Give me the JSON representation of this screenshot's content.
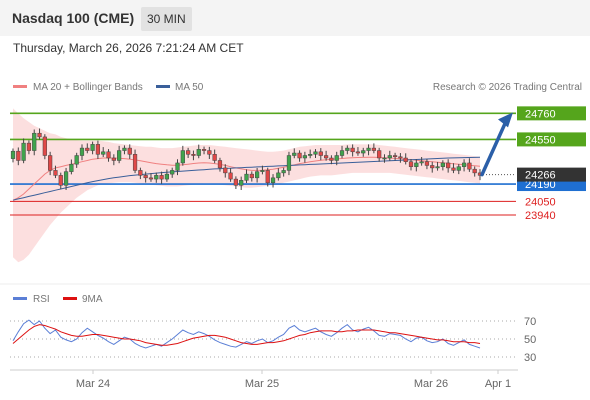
{
  "header": {
    "title": "Nasdaq 100 (CME)",
    "timeframe": "30 MIN",
    "datetime": "Thursday, March 26, 2026 7:21:24 AM CET"
  },
  "legend": {
    "ma20_label": "MA 20 + Bollinger Bands",
    "ma50_label": "MA 50",
    "copyright": "Research © 2026 Trading Central",
    "ma20_color": "#f08080",
    "ma50_color": "#3a5f9a"
  },
  "rsi_legend": {
    "rsi_label": "RSI",
    "ma_label": "9MA",
    "rsi_color": "#5b7fd6",
    "ma_color": "#dd1111"
  },
  "chart_data": [
    {
      "type": "candlestick",
      "title": "Nasdaq 100 (CME)",
      "x_ticks": [
        "Mar 24",
        "Mar 25",
        "Mar 26",
        "Apr 1"
      ],
      "ylim": [
        23400,
        24900
      ],
      "last_price": 24266,
      "levels": [
        {
          "value": 24760,
          "label": "24760",
          "kind": "resistance",
          "color": "#55a51c"
        },
        {
          "value": 24550,
          "label": "24550",
          "kind": "resistance",
          "color": "#55a51c"
        },
        {
          "value": 24190,
          "label": "24190",
          "kind": "pivot",
          "color": "#1f6fd1"
        },
        {
          "value": 24050,
          "label": "24050",
          "kind": "support",
          "color": "#dd1f1f"
        },
        {
          "value": 23940,
          "label": "23940",
          "kind": "support",
          "color": "#dd1f1f"
        }
      ],
      "last_price_label": "24266",
      "arrow": {
        "from": 24266,
        "to": 24760,
        "color": "#2b5fa8"
      },
      "closes": [
        24455,
        24380,
        24520,
        24460,
        24600,
        24570,
        24420,
        24300,
        24260,
        24180,
        24290,
        24350,
        24420,
        24480,
        24460,
        24510,
        24430,
        24450,
        24400,
        24380,
        24460,
        24480,
        24430,
        24300,
        24260,
        24240,
        24230,
        24260,
        24230,
        24270,
        24300,
        24360,
        24460,
        24430,
        24420,
        24470,
        24460,
        24430,
        24380,
        24320,
        24280,
        24230,
        24180,
        24220,
        24270,
        24240,
        24290,
        24300,
        24200,
        24240,
        24280,
        24300,
        24420,
        24440,
        24400,
        24420,
        24430,
        24450,
        24420,
        24400,
        24380,
        24420,
        24460,
        24480,
        24450,
        24440,
        24460,
        24480,
        24460,
        24400,
        24400,
        24420,
        24410,
        24400,
        24370,
        24330,
        24360,
        24370,
        24340,
        24320,
        24330,
        24360,
        24320,
        24300,
        24330,
        24360,
        24310,
        24280,
        24260
      ],
      "bollinger_upper": [
        24800,
        24760,
        24720,
        24690,
        24660,
        24640,
        24620,
        24600,
        24590,
        24570,
        24560,
        24550,
        24545,
        24540,
        24540,
        24540,
        24540,
        24535,
        24530,
        24520,
        24515,
        24510,
        24505,
        24500,
        24495,
        24490,
        24490,
        24485,
        24480,
        24480,
        24480,
        24485,
        24490,
        24495,
        24500,
        24505,
        24505,
        24505,
        24500,
        24495,
        24490,
        24485,
        24480,
        24475,
        24470,
        24465,
        24460,
        24455,
        24450,
        24450,
        24455,
        24460,
        24470,
        24480,
        24490,
        24495,
        24500,
        24505,
        24505,
        24505,
        24505,
        24505,
        24505,
        24510,
        24510,
        24510,
        24510,
        24510,
        24510,
        24505,
        24500,
        24495,
        24490,
        24485,
        24480,
        24475,
        24470,
        24465,
        24460,
        24455,
        24450,
        24445,
        24440,
        24435,
        24430,
        24425,
        24420,
        24415,
        24410
      ],
      "bollinger_lower": [
        23600,
        23560,
        23580,
        23620,
        23680,
        23740,
        23800,
        23860,
        23910,
        23960,
        24000,
        24040,
        24080,
        24110,
        24140,
        24160,
        24180,
        24190,
        24195,
        24200,
        24205,
        24205,
        24205,
        24200,
        24195,
        24190,
        24185,
        24180,
        24175,
        24170,
        24170,
        24170,
        24175,
        24180,
        24185,
        24190,
        24195,
        24195,
        24190,
        24185,
        24180,
        24175,
        24170,
        24165,
        24160,
        24160,
        24165,
        24170,
        24175,
        24180,
        24190,
        24200,
        24210,
        24220,
        24230,
        24240,
        24250,
        24255,
        24260,
        24260,
        24260,
        24265,
        24270,
        24275,
        24280,
        24280,
        24280,
        24280,
        24280,
        24280,
        24280,
        24280,
        24275,
        24270,
        24265,
        24260,
        24255,
        24250,
        24245,
        24240,
        24235,
        24230,
        24225,
        24220,
        24215,
        24210,
        24205,
        24200,
        24195
      ],
      "ma20": [
        24060,
        24080,
        24110,
        24150,
        24190,
        24230,
        24270,
        24300,
        24320,
        24330,
        24340,
        24350,
        24360,
        24370,
        24380,
        24390,
        24395,
        24400,
        24400,
        24400,
        24398,
        24395,
        24390,
        24385,
        24378,
        24370,
        24362,
        24355,
        24350,
        24345,
        24342,
        24342,
        24345,
        24350,
        24356,
        24360,
        24362,
        24360,
        24355,
        24348,
        24340,
        24330,
        24320,
        24312,
        24305,
        24300,
        24300,
        24302,
        24305,
        24310,
        24318,
        24326,
        24335,
        24345,
        24355,
        24362,
        24370,
        24376,
        24382,
        24386,
        24390,
        24393,
        24396,
        24400,
        24402,
        24404,
        24405,
        24406,
        24406,
        24404,
        24402,
        24400,
        24397,
        24394,
        24390,
        24386,
        24382,
        24378,
        24374,
        24370,
        24366,
        24362,
        24358,
        24354,
        24350,
        24346,
        24342,
        24338,
        24334
      ],
      "ma50": [
        24060,
        24070,
        24080,
        24090,
        24100,
        24110,
        24120,
        24130,
        24140,
        24150,
        24160,
        24170,
        24180,
        24190,
        24200,
        24210,
        24218,
        24226,
        24234,
        24240,
        24246,
        24252,
        24258,
        24262,
        24266,
        24270,
        24274,
        24278,
        24282,
        24285,
        24288,
        24291,
        24294,
        24297,
        24300,
        24303,
        24306,
        24309,
        24312,
        24314,
        24316,
        24318,
        24320,
        24322,
        24324,
        24326,
        24328,
        24330,
        24332,
        24334,
        24336,
        24338,
        24340,
        24342,
        24344,
        24346,
        24348,
        24350,
        24352,
        24354,
        24356,
        24358,
        24360,
        24362,
        24364,
        24366,
        24368,
        24370,
        24372,
        24374,
        24376,
        24378,
        24380,
        24382,
        24384,
        24386,
        24388,
        24390,
        24392,
        24394,
        24396,
        24398,
        24400,
        24401,
        24402,
        24403,
        24404,
        24405,
        24406
      ]
    },
    {
      "type": "line",
      "title": "RSI",
      "x_ticks": [
        "Mar 24",
        "Mar 25",
        "Mar 26",
        "Apr 1"
      ],
      "y_ticks": [
        70,
        50,
        30
      ],
      "ylim": [
        20,
        80
      ],
      "series": [
        {
          "name": "RSI",
          "values": [
            48,
            58,
            67,
            71,
            66,
            70,
            62,
            56,
            60,
            52,
            49,
            47,
            50,
            57,
            62,
            58,
            54,
            51,
            47,
            44,
            48,
            52,
            50,
            45,
            42,
            40,
            42,
            44,
            42,
            46,
            50,
            55,
            60,
            57,
            55,
            58,
            56,
            53,
            49,
            46,
            44,
            42,
            41,
            44,
            47,
            45,
            48,
            50,
            46,
            48,
            52,
            55,
            62,
            65,
            60,
            58,
            60,
            62,
            58,
            55,
            53,
            57,
            62,
            66,
            60,
            58,
            61,
            63,
            59,
            54,
            53,
            56,
            55,
            54,
            50,
            47,
            51,
            52,
            48,
            46,
            47,
            50,
            45,
            43,
            46,
            49,
            44,
            42,
            40
          ]
        },
        {
          "name": "9MA",
          "values": [
            45,
            50,
            55,
            60,
            64,
            66,
            65,
            63,
            61,
            58,
            56,
            54,
            53,
            53,
            54,
            55,
            55,
            54,
            53,
            52,
            51,
            50,
            50,
            49,
            48,
            46,
            45,
            44,
            43,
            43,
            44,
            45,
            47,
            49,
            51,
            52,
            53,
            54,
            54,
            53,
            52,
            50,
            48,
            46,
            45,
            44,
            44,
            45,
            46,
            46,
            47,
            48,
            50,
            52,
            54,
            55,
            57,
            58,
            59,
            59,
            59,
            58,
            58,
            59,
            59,
            60,
            60,
            60,
            60,
            59,
            58,
            57,
            57,
            56,
            55,
            54,
            53,
            52,
            51,
            50,
            49,
            49,
            48,
            47,
            47,
            47,
            46,
            46,
            45
          ]
        }
      ]
    }
  ]
}
